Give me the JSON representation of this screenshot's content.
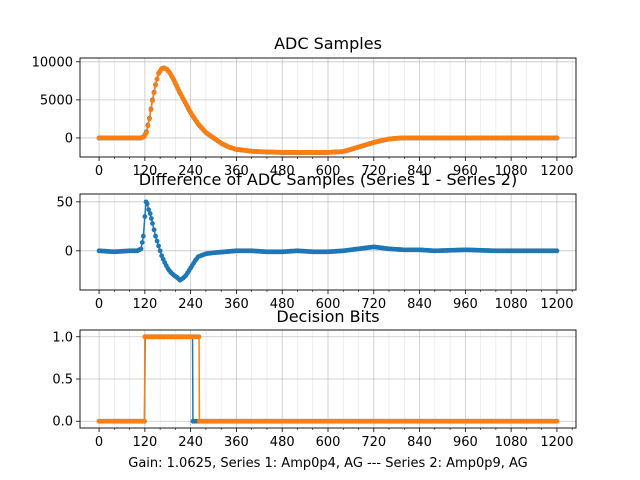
{
  "figure": {
    "xlabel": "Gain: 1.0625, Series 1: Amp0p4, AG --- Series 2: Amp0p9, AG"
  },
  "colors": {
    "series1": "#1f77b4",
    "series2": "#ff7f0e",
    "grid": "#b0b0b0",
    "axes": "#000000"
  },
  "chart_data": [
    {
      "type": "scatter",
      "title": "ADC Samples",
      "xlabel": "",
      "ylabel": "",
      "xlim": [
        -50,
        1250
      ],
      "ylim": [
        -2500,
        10500
      ],
      "xticks": [
        0,
        120,
        240,
        360,
        480,
        600,
        720,
        840,
        960,
        1080,
        1200
      ],
      "yticks": [
        0,
        5000,
        10000
      ],
      "grid": true,
      "series": [
        {
          "key": "series1",
          "x": [
            0,
            110,
            118,
            124,
            132,
            140,
            148,
            156,
            164,
            170,
            178,
            186,
            196,
            210,
            225,
            240,
            260,
            280,
            300,
            320,
            340,
            360,
            400,
            440,
            480,
            520,
            560,
            600,
            640,
            660,
            680,
            700,
            720,
            740,
            760,
            780,
            800,
            1200
          ],
          "y": [
            0,
            0,
            200,
            800,
            2600,
            5000,
            7000,
            8500,
            9100,
            9200,
            9000,
            8500,
            7600,
            6100,
            4700,
            3300,
            1800,
            700,
            0,
            -700,
            -1200,
            -1500,
            -1750,
            -1850,
            -1900,
            -1900,
            -1900,
            -1900,
            -1800,
            -1500,
            -1200,
            -900,
            -600,
            -350,
            -150,
            -50,
            0,
            0
          ]
        },
        {
          "key": "series2",
          "x": [
            0,
            110,
            118,
            124,
            132,
            140,
            148,
            156,
            164,
            170,
            178,
            186,
            196,
            210,
            225,
            240,
            260,
            280,
            300,
            320,
            340,
            360,
            400,
            440,
            480,
            520,
            560,
            600,
            640,
            660,
            680,
            700,
            720,
            740,
            760,
            780,
            800,
            1200
          ],
          "y": [
            0,
            0,
            150,
            700,
            2500,
            4900,
            6950,
            8450,
            9080,
            9190,
            9010,
            8520,
            7650,
            6150,
            4750,
            3350,
            1850,
            720,
            20,
            -680,
            -1180,
            -1490,
            -1740,
            -1840,
            -1890,
            -1900,
            -1900,
            -1900,
            -1790,
            -1490,
            -1190,
            -890,
            -590,
            -340,
            -140,
            -40,
            0,
            0
          ]
        }
      ]
    },
    {
      "type": "scatter",
      "title": "Difference of ADC Samples (Series 1 - Series 2)",
      "xlabel": "",
      "ylabel": "",
      "xlim": [
        -50,
        1250
      ],
      "ylim": [
        -40,
        58
      ],
      "xticks": [
        0,
        120,
        240,
        360,
        480,
        600,
        720,
        840,
        960,
        1080,
        1200
      ],
      "yticks": [
        -50,
        0,
        50
      ],
      "grid": true,
      "series": [
        {
          "key": "series1",
          "x": [
            0,
            40,
            80,
            100,
            110,
            116,
            120,
            123,
            126,
            130,
            134,
            140,
            148,
            156,
            164,
            172,
            180,
            188,
            196,
            204,
            212,
            220,
            228,
            236,
            244,
            252,
            260,
            280,
            300,
            330,
            360,
            400,
            440,
            480,
            520,
            560,
            600,
            640,
            680,
            700,
            720,
            740,
            760,
            800,
            840,
            880,
            960,
            1040,
            1120,
            1200
          ],
          "y": [
            0,
            -1,
            0,
            0,
            2,
            15,
            35,
            50,
            48,
            42,
            38,
            28,
            15,
            5,
            -5,
            -12,
            -18,
            -22,
            -25,
            -27,
            -30,
            -28,
            -25,
            -20,
            -15,
            -10,
            -6,
            -3,
            -2,
            -1,
            0,
            0,
            -1,
            -1,
            0,
            -1,
            -1,
            0,
            2,
            3,
            4,
            3,
            2,
            1,
            1,
            0,
            1,
            0,
            0,
            0
          ]
        }
      ]
    },
    {
      "type": "line",
      "title": "Decision Bits",
      "xlabel": "",
      "ylabel": "",
      "xlim": [
        -50,
        1250
      ],
      "ylim": [
        -0.08,
        1.08
      ],
      "xticks": [
        0,
        120,
        240,
        360,
        480,
        600,
        720,
        840,
        960,
        1080,
        1200
      ],
      "yticks": [
        0.0,
        0.5,
        1.0
      ],
      "ytick_labels": [
        "0.0",
        "0.5",
        "1.0"
      ],
      "grid": true,
      "series": [
        {
          "key": "series1",
          "x": [
            0,
            118,
            119,
            121,
            122,
            245,
            246,
            247,
            1200
          ],
          "y": [
            0,
            0,
            0,
            1,
            1,
            1,
            0,
            0,
            0
          ]
        },
        {
          "key": "series2",
          "x": [
            0,
            119,
            120,
            121,
            262,
            263,
            264,
            1200
          ],
          "y": [
            0,
            0,
            1,
            1,
            1,
            0,
            0,
            0
          ]
        }
      ]
    }
  ]
}
